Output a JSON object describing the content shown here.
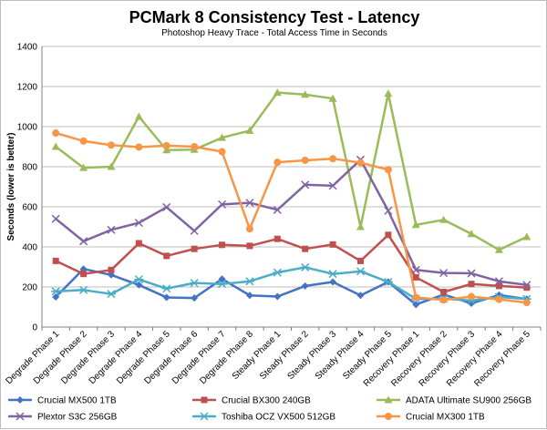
{
  "chart_data": {
    "type": "line",
    "title": "PCMark 8 Consistency Test - Latency",
    "subtitle": "Photoshop Heavy Trace - Total Access Time in Seconds",
    "xlabel": "",
    "ylabel": "Seconds (lower is better)",
    "ylim": [
      0,
      1400
    ],
    "yticks": [
      0,
      200,
      400,
      600,
      800,
      1000,
      1200,
      1400
    ],
    "grid": true,
    "legend_position": "bottom",
    "categories": [
      "Degrade Phase 1",
      "Degrade Phase 2",
      "Degrade Phase 3",
      "Degrade Phase 4",
      "Degrade Phase 5",
      "Degrade Phase 6",
      "Degrade Phase 7",
      "Degrade Phase 8",
      "Steady Phase 1",
      "Steady Phase 2",
      "Steady Phase 3",
      "Steady Phase 4",
      "Steady Phase 5",
      "Recovery Phase 1",
      "Recovery Phase 2",
      "Recovery Phase 3",
      "Recovery Phase 4",
      "Recovery Phase 5"
    ],
    "series": [
      {
        "name": "Crucial MX500 1TB",
        "color": "#4472c4",
        "marker": "diamond",
        "values": [
          150,
          290,
          260,
          210,
          148,
          145,
          240,
          158,
          152,
          205,
          225,
          158,
          225,
          112,
          162,
          118,
          160,
          140
        ]
      },
      {
        "name": "Crucial BX300 240GB",
        "color": "#c0504d",
        "marker": "square",
        "values": [
          330,
          265,
          285,
          418,
          355,
          390,
          410,
          405,
          440,
          390,
          412,
          330,
          460,
          248,
          175,
          215,
          205,
          197
        ]
      },
      {
        "name": "ADATA Ultimate SU900 256GB",
        "color": "#9bbb59",
        "marker": "triangle",
        "values": [
          900,
          795,
          800,
          1050,
          883,
          885,
          945,
          980,
          1170,
          1160,
          1140,
          500,
          1165,
          510,
          535,
          465,
          385,
          450
        ]
      },
      {
        "name": "Plextor S3C 256GB",
        "color": "#8064a2",
        "marker": "x",
        "values": [
          540,
          428,
          485,
          520,
          598,
          480,
          612,
          620,
          585,
          710,
          705,
          835,
          580,
          285,
          270,
          268,
          228,
          210
        ]
      },
      {
        "name": "Toshiba OCZ VX500 512GB",
        "color": "#4bacc6",
        "marker": "asterisk",
        "values": [
          178,
          185,
          165,
          238,
          192,
          220,
          215,
          228,
          272,
          298,
          265,
          278,
          225,
          140,
          142,
          132,
          150,
          140
        ]
      },
      {
        "name": "Crucial MX300 1TB",
        "color": "#f79646",
        "marker": "circle",
        "values": [
          968,
          928,
          908,
          898,
          905,
          900,
          875,
          490,
          822,
          832,
          840,
          820,
          785,
          148,
          135,
          152,
          138,
          122
        ]
      }
    ]
  }
}
